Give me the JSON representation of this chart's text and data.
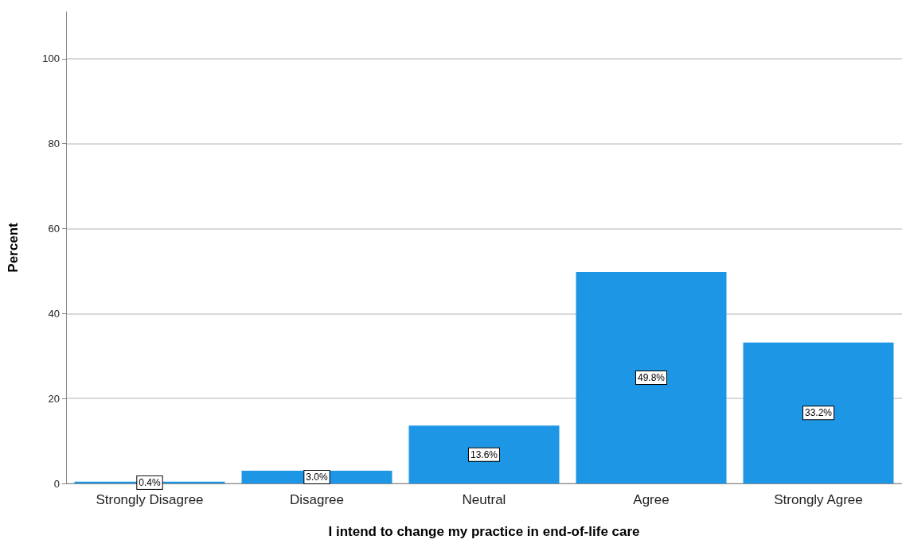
{
  "chart_data": {
    "type": "bar",
    "xlabel": "I intend to change my practice in end-of-life care",
    "ylabel": "Percent",
    "categories": [
      "Strongly Disagree",
      "Disagree",
      "Neutral",
      "Agree",
      "Strongly Agree"
    ],
    "values": [
      0.4,
      3.0,
      13.6,
      49.8,
      33.2
    ],
    "value_labels": [
      "0.4%",
      "3.0%",
      "13.6%",
      "49.8%",
      "33.2%"
    ],
    "color": "#1e96e6",
    "ylim": [
      0,
      111
    ],
    "yticks": [
      0,
      20,
      40,
      60,
      80,
      100
    ],
    "grid": "y"
  }
}
